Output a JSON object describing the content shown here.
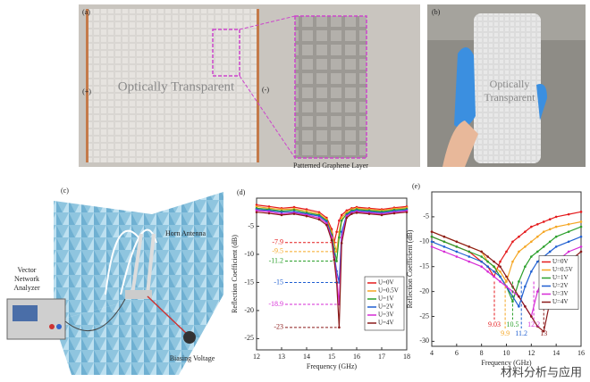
{
  "panel_a": {
    "label": "(a)",
    "overlay": "Optically Transparent",
    "plus": "(+)",
    "minus": "(-)",
    "caption": "Patterned Graphene Layer"
  },
  "panel_b": {
    "label": "(b)",
    "overlay_1": "Optically",
    "overlay_2": "Transparent"
  },
  "panel_c": {
    "label": "(c)",
    "vna_1": "Vector",
    "vna_2": "Network",
    "vna_3": "Analyzer",
    "antenna": "Horn Antenna",
    "bias": "Biasing Voltage"
  },
  "watermark": "材料分析与应用",
  "chart_data": [
    {
      "type": "line",
      "label": "(d)",
      "xlabel": "Frequency (GHz)",
      "ylabel": "Reflection Coefficient (dB)",
      "xlim": [
        12,
        18
      ],
      "xticks": [
        12,
        13,
        14,
        15,
        16,
        17,
        18
      ],
      "ylim": [
        -27,
        0
      ],
      "yticks": [
        -25,
        -20,
        -15,
        -10,
        -5
      ],
      "legend": "lower right",
      "annotation_axis": "y",
      "x": [
        12,
        12.5,
        13,
        13.5,
        14,
        14.5,
        14.8,
        15,
        15.1,
        15.2,
        15.3,
        15.4,
        15.6,
        15.8,
        16,
        16.5,
        17,
        17.5,
        18
      ],
      "series": [
        {
          "name": "U=0V",
          "color": "#e41a1c",
          "values": [
            -1.2,
            -1.5,
            -1.8,
            -1.6,
            -2,
            -2.5,
            -3.5,
            -5.5,
            -7.9,
            -6,
            -4,
            -3,
            -2.2,
            -1.8,
            -1.6,
            -1.8,
            -2,
            -1.7,
            -1.5
          ]
        },
        {
          "name": "U=0.5V",
          "color": "#f5a623",
          "values": [
            -1.5,
            -1.8,
            -2,
            -1.9,
            -2.3,
            -2.8,
            -3.8,
            -6,
            -8,
            -9.5,
            -6,
            -3.5,
            -2.5,
            -2,
            -1.8,
            -2,
            -2.2,
            -1.9,
            -1.7
          ]
        },
        {
          "name": "U=1V",
          "color": "#2ca02c",
          "values": [
            -1.8,
            -2,
            -2.3,
            -2.1,
            -2.6,
            -3,
            -4,
            -6.5,
            -9,
            -11.2,
            -7,
            -4,
            -2.8,
            -2.2,
            -2,
            -2.2,
            -2.4,
            -2.1,
            -1.9
          ]
        },
        {
          "name": "U=2V",
          "color": "#1f5fd1",
          "values": [
            -2,
            -2.2,
            -2.5,
            -2.4,
            -2.8,
            -3.2,
            -4.2,
            -6.8,
            -10,
            -13,
            -15,
            -6,
            -3,
            -2.4,
            -2.2,
            -2.4,
            -2.6,
            -2.3,
            -2.1
          ]
        },
        {
          "name": "U=3V",
          "color": "#d62bd6",
          "values": [
            -2.2,
            -2.4,
            -2.8,
            -2.6,
            -3,
            -3.5,
            -4.5,
            -7,
            -10.5,
            -14,
            -18.9,
            -7,
            -3.2,
            -2.6,
            -2.4,
            -2.6,
            -2.8,
            -2.5,
            -2.3
          ]
        },
        {
          "name": "U=4V",
          "color": "#8b1a1a",
          "values": [
            -2.5,
            -2.7,
            -3,
            -2.8,
            -3.2,
            -3.8,
            -4.8,
            -7.5,
            -11,
            -15,
            -23,
            -8,
            -3.5,
            -2.8,
            -2.6,
            -2.8,
            -3,
            -2.7,
            -2.5
          ]
        }
      ],
      "annotations": [
        -7.9,
        -9.5,
        -11.2,
        -15,
        -18.9,
        -23
      ]
    },
    {
      "type": "line",
      "label": "(e)",
      "xlabel": "Frequency (GHz)",
      "ylabel": "Reflection Coefficient (dB)",
      "xlim": [
        4,
        16
      ],
      "xticks": [
        4,
        6,
        8,
        10,
        12,
        14,
        16
      ],
      "ylim": [
        -31,
        0
      ],
      "yticks": [
        -30,
        -25,
        -20,
        -15,
        -10,
        -5
      ],
      "legend": "right",
      "annotation_axis": "x",
      "x": [
        4,
        5,
        6,
        7,
        8,
        8.5,
        9,
        9.5,
        10,
        10.5,
        11,
        11.5,
        12,
        12.5,
        13,
        13.5,
        14,
        15,
        16
      ],
      "series": [
        {
          "name": "U=0V",
          "color": "#e41a1c",
          "values": [
            -9,
            -10,
            -11,
            -12,
            -14,
            -15,
            -17,
            -14,
            -12,
            -10,
            -9,
            -8,
            -7,
            -6.5,
            -6,
            -5.5,
            -5,
            -4.5,
            -4
          ]
        },
        {
          "name": "U=0.5V",
          "color": "#f5a623",
          "values": [
            -8,
            -9,
            -10,
            -11,
            -12,
            -14,
            -15,
            -16,
            -18,
            -14,
            -12,
            -11,
            -10,
            -9,
            -8,
            -7.5,
            -7,
            -6.5,
            -6
          ]
        },
        {
          "name": "U=1V",
          "color": "#2ca02c",
          "values": [
            -9,
            -10,
            -11,
            -12,
            -13,
            -14,
            -15,
            -17,
            -19,
            -22,
            -18,
            -15,
            -13,
            -12,
            -11,
            -10,
            -9,
            -8,
            -7
          ]
        },
        {
          "name": "U=2V",
          "color": "#1f5fd1",
          "values": [
            -10,
            -11,
            -12,
            -13,
            -14,
            -15,
            -16,
            -17,
            -19,
            -21,
            -23,
            -19,
            -16,
            -14,
            -13,
            -12,
            -11,
            -10,
            -9
          ]
        },
        {
          "name": "U=3V",
          "color": "#d62bd6",
          "values": [
            -11,
            -12,
            -13,
            -14,
            -15,
            -16,
            -17,
            -18,
            -19,
            -20,
            -21,
            -23,
            -25,
            -20,
            -17,
            -15,
            -14,
            -12,
            -11
          ]
        },
        {
          "name": "U=4V",
          "color": "#8b1a1a",
          "values": [
            -8,
            -9,
            -10,
            -11,
            -12,
            -13,
            -14,
            -15,
            -17,
            -19,
            -21,
            -23,
            -25,
            -27,
            -28,
            -22,
            -18,
            -14,
            -12
          ]
        }
      ],
      "annotations": [
        9.03,
        9.9,
        10.5,
        11.2,
        12.2,
        13
      ]
    }
  ]
}
